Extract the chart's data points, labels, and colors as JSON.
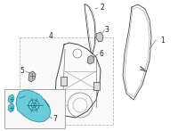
{
  "bg_color": "#ffffff",
  "fig_width": 2.0,
  "fig_height": 1.47,
  "dpi": 100,
  "highlight_color": "#5bc8d8",
  "line_color": "#999999",
  "dark_line": "#444444",
  "mid_line": "#777777"
}
